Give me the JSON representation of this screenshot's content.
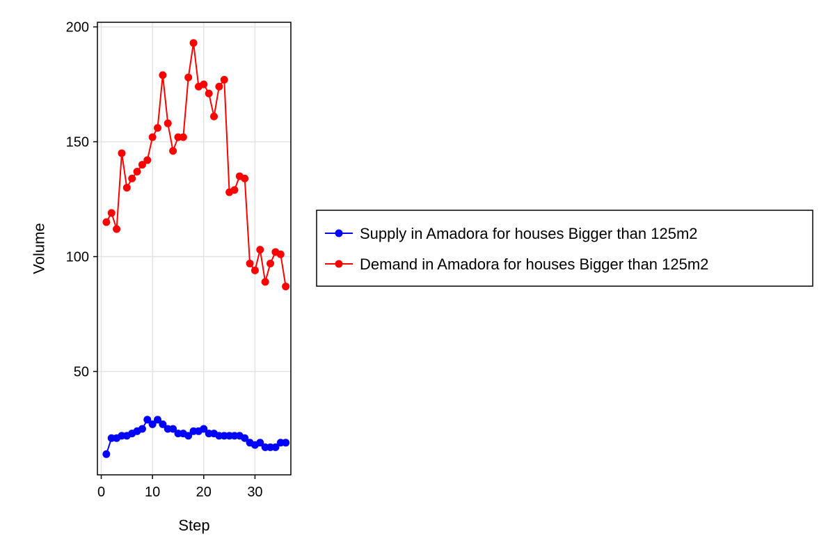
{
  "chart_data": {
    "type": "line",
    "xlabel": "Step",
    "ylabel": "Volume",
    "xlim": [
      0,
      37
    ],
    "ylim": [
      5,
      202
    ],
    "xticks": [
      0,
      10,
      20,
      30
    ],
    "yticks": [
      50,
      100,
      150,
      200
    ],
    "grid": true,
    "legend_position": "right",
    "markers": true,
    "series": [
      {
        "name": "Supply in Amadora for houses Bigger than 125m2",
        "color": "#0000ff",
        "x": [
          1,
          2,
          3,
          4,
          5,
          6,
          7,
          8,
          9,
          10,
          11,
          12,
          13,
          14,
          15,
          16,
          17,
          18,
          19,
          20,
          21,
          22,
          23,
          24,
          25,
          26,
          27,
          28,
          29,
          30,
          31,
          32,
          33,
          34,
          35,
          36
        ],
        "y": [
          14,
          21,
          21,
          22,
          22,
          23,
          24,
          25,
          29,
          27,
          29,
          27,
          25,
          25,
          23,
          23,
          22,
          24,
          24,
          25,
          23,
          23,
          22,
          22,
          22,
          22,
          22,
          21,
          19,
          18,
          19,
          17,
          17,
          17,
          19,
          19
        ]
      },
      {
        "name": "Demand in Amadora for houses Bigger than 125m2",
        "color": "#ff0000",
        "x": [
          1,
          2,
          3,
          4,
          5,
          6,
          7,
          8,
          9,
          10,
          11,
          12,
          13,
          14,
          15,
          16,
          17,
          18,
          19,
          20,
          21,
          22,
          23,
          24,
          25,
          26,
          27,
          28,
          29,
          30,
          31,
          32,
          33,
          34,
          35,
          36
        ],
        "y": [
          115,
          119,
          112,
          145,
          130,
          134,
          137,
          140,
          142,
          152,
          156,
          179,
          158,
          146,
          152,
          152,
          178,
          193,
          174,
          175,
          171,
          161,
          174,
          177,
          128,
          129,
          135,
          134,
          97,
          94,
          103,
          89,
          97,
          102,
          101,
          87
        ]
      }
    ]
  }
}
